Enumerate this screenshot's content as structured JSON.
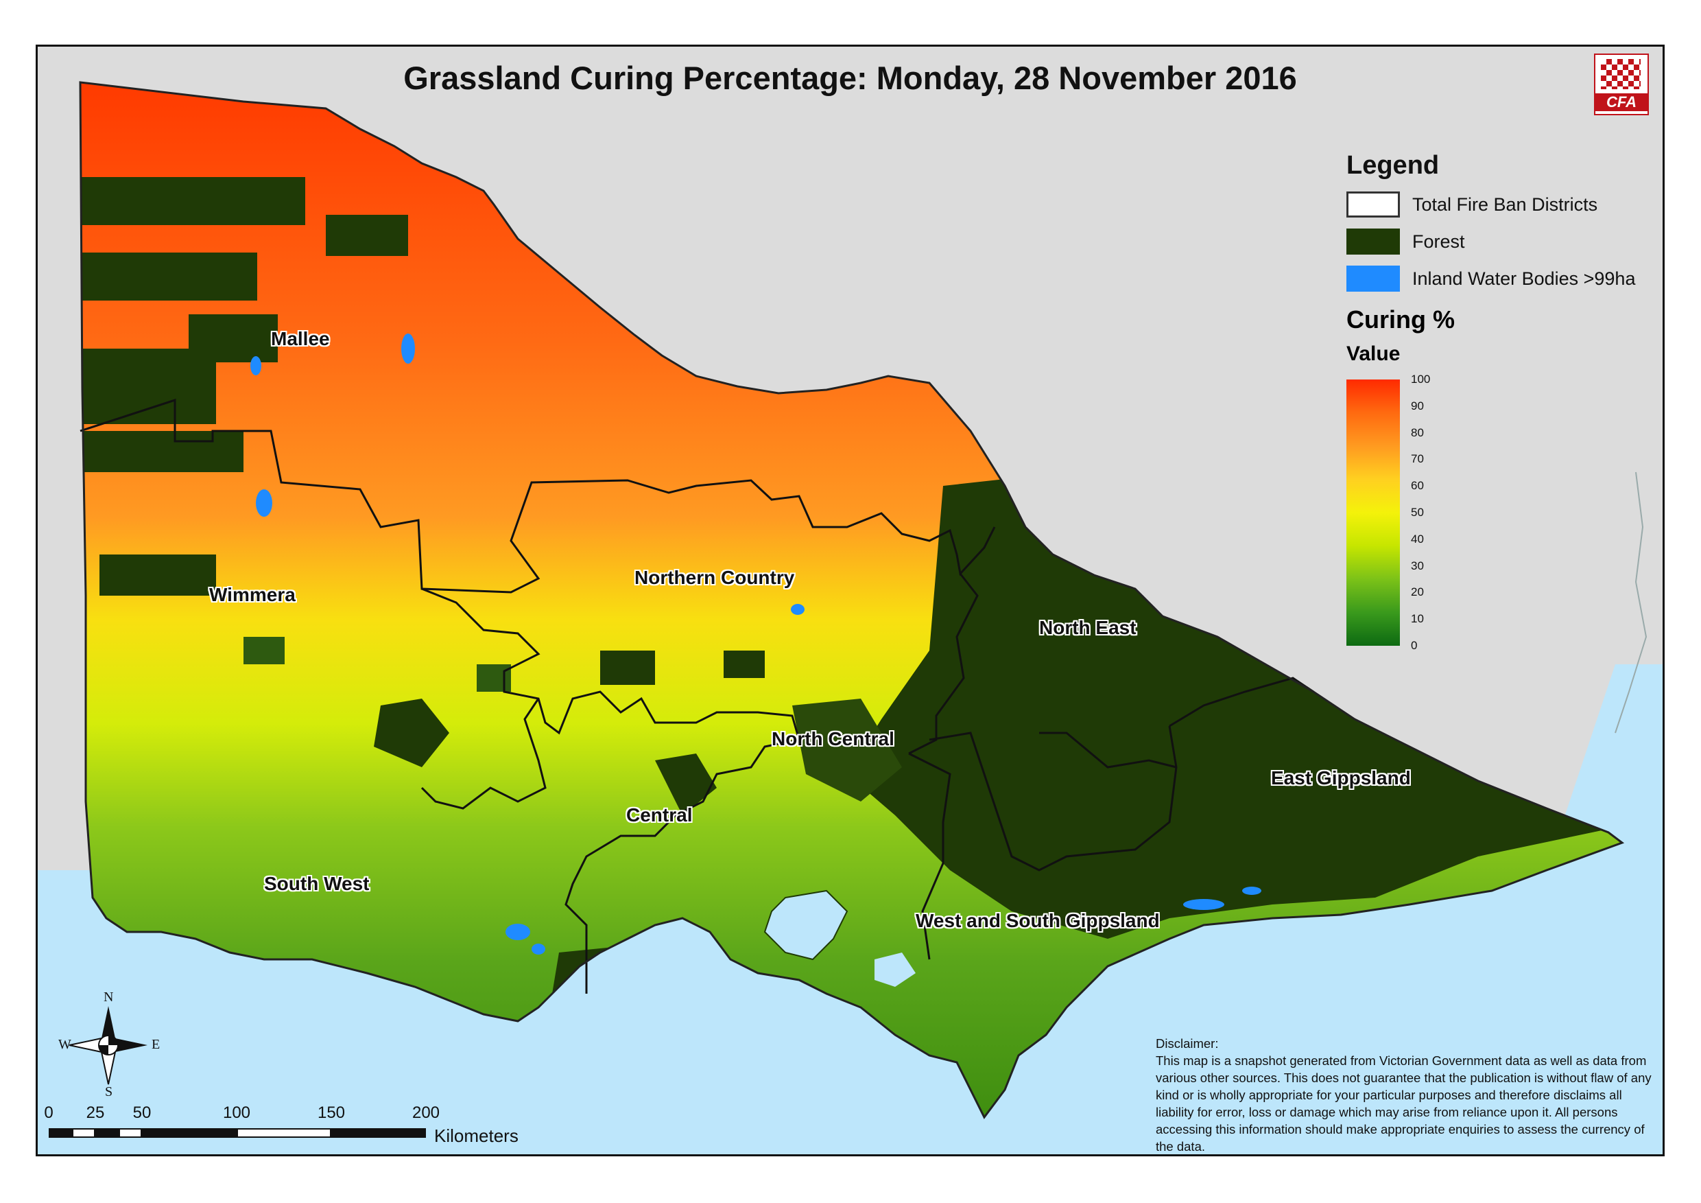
{
  "map": {
    "title": "Grassland Curing Percentage: Monday, 28 November 2016",
    "logo_text": "CFA",
    "colors": {
      "background_land": "#dcdcdc",
      "sea": "#bde6fb",
      "forest": "#1f3a06",
      "water": "#1f8bff",
      "district_border": "#111111"
    }
  },
  "legend": {
    "title": "Legend",
    "items": [
      {
        "label": "Total Fire Ban Districts",
        "swatch": "outline"
      },
      {
        "label": "Forest",
        "color": "#1f3a06"
      },
      {
        "label": "Inland Water Bodies >99ha",
        "color": "#1f8bff"
      }
    ],
    "curing_title": "Curing %",
    "value_title": "Value",
    "ticks": [
      "100",
      "90",
      "80",
      "70",
      "60",
      "50",
      "40",
      "30",
      "20",
      "10",
      "0"
    ]
  },
  "regions": [
    "Mallee",
    "Wimmera",
    "Northern Country",
    "North East",
    "North Central",
    "East Gippsland",
    "Central",
    "South West",
    "West and South Gippsland"
  ],
  "compass": {
    "n": "N",
    "s": "S",
    "e": "E",
    "w": "W"
  },
  "scale": {
    "labels": [
      "0",
      "25",
      "50",
      "100",
      "150",
      "200"
    ],
    "unit": "Kilometers"
  },
  "disclaimer": {
    "heading": "Disclaimer:",
    "text": "This map is a snapshot generated from Victorian Government data as well as data from various other sources. This does not guarantee that the publication is without flaw of any kind or is wholly appropriate for your particular purposes and therefore disclaims all liability for error, loss or damage which may arise from reliance upon it. All persons accessing this information should make appropriate enquiries to assess the currency of the data."
  }
}
